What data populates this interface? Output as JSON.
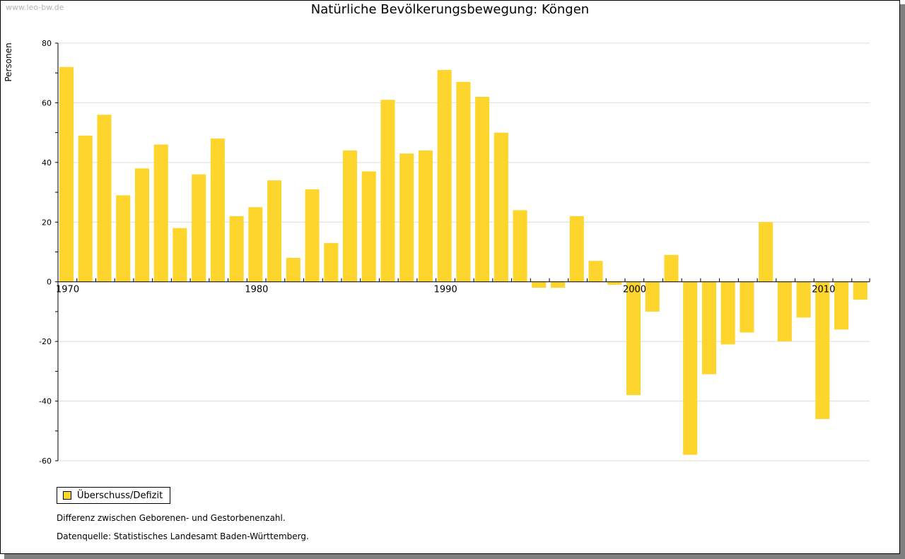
{
  "watermark": "www.leo-bw.de",
  "chart_data": {
    "type": "bar",
    "title": "Natürliche Bevölkerungsbewegung: Köngen",
    "ylabel": "Personen",
    "xlabel": "",
    "ylim": [
      -60,
      80
    ],
    "yticks": [
      80,
      60,
      40,
      20,
      0,
      -20,
      -40,
      -60
    ],
    "grid": true,
    "x_ticks": [
      {
        "year": 1970,
        "label": "1970"
      },
      {
        "year": 1980,
        "label": "1980"
      },
      {
        "year": 1990,
        "label": "1990"
      },
      {
        "year": 2000,
        "label": "2000"
      },
      {
        "year": 2010,
        "label": "2010"
      }
    ],
    "color": "#fdd52c",
    "series": [
      {
        "name": "Überschuss/Defizit",
        "x": [
          1970,
          1971,
          1972,
          1973,
          1974,
          1975,
          1976,
          1977,
          1978,
          1979,
          1980,
          1981,
          1982,
          1983,
          1984,
          1985,
          1986,
          1987,
          1988,
          1989,
          1990,
          1991,
          1992,
          1993,
          1994,
          1995,
          1996,
          1997,
          1998,
          1999,
          2000,
          2001,
          2002,
          2003,
          2004,
          2005,
          2006,
          2007,
          2008,
          2009,
          2010,
          2011,
          2012
        ],
        "values": [
          72,
          49,
          56,
          29,
          38,
          46,
          18,
          36,
          48,
          22,
          25,
          34,
          8,
          31,
          13,
          44,
          37,
          61,
          43,
          44,
          71,
          67,
          62,
          50,
          24,
          -2,
          -2,
          22,
          7,
          -1,
          -38,
          -10,
          9,
          -58,
          -31,
          -21,
          -17,
          20,
          -20,
          -12,
          -46,
          -16,
          -6
        ]
      }
    ]
  },
  "notes": {
    "line1": "Differenz zwischen Geborenen- und Gestorbenenzahl.",
    "line2": "Datenquelle: Statistisches Landesamt Baden-Württemberg."
  }
}
